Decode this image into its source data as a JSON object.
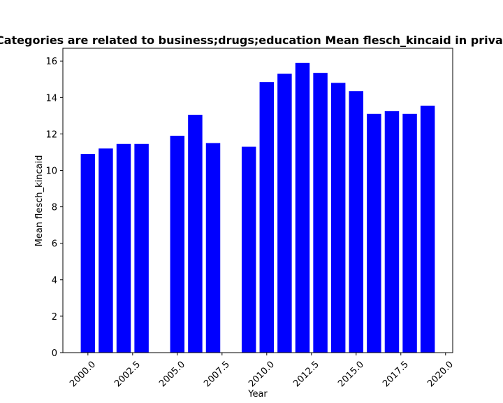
{
  "chart_data": {
    "type": "bar",
    "title": "Categories are related to business;drugs;education Mean flesch_kincaid in privacy policies",
    "xlabel": "Year",
    "ylabel": "Mean flesch_kincaid",
    "x": [
      2000,
      2001,
      2002,
      2003,
      2005,
      2006,
      2007,
      2009,
      2010,
      2011,
      2012,
      2013,
      2014,
      2015,
      2016,
      2017,
      2018,
      2019
    ],
    "values": [
      10.9,
      11.2,
      11.45,
      11.45,
      11.9,
      13.05,
      11.5,
      11.3,
      14.85,
      15.3,
      15.9,
      15.35,
      14.8,
      14.35,
      13.1,
      13.25,
      13.1,
      13.55
    ],
    "xlim": [
      1998.6,
      2020.4
    ],
    "ylim": [
      0,
      16.7
    ],
    "xticks": [
      2000.0,
      2002.5,
      2005.0,
      2007.5,
      2010.0,
      2012.5,
      2015.0,
      2017.5,
      2020.0
    ],
    "xtick_labels": [
      "2000.0",
      "2002.5",
      "2005.0",
      "2007.5",
      "2010.0",
      "2012.5",
      "2015.0",
      "2017.5",
      "2020.0"
    ],
    "yticks": [
      0,
      2,
      4,
      6,
      8,
      10,
      12,
      14,
      16
    ],
    "ytick_labels": [
      "0",
      "2",
      "4",
      "6",
      "8",
      "10",
      "12",
      "14",
      "16"
    ],
    "bar_width": 0.8,
    "bar_color": "#0000ff",
    "grid": false,
    "legend": "none"
  }
}
